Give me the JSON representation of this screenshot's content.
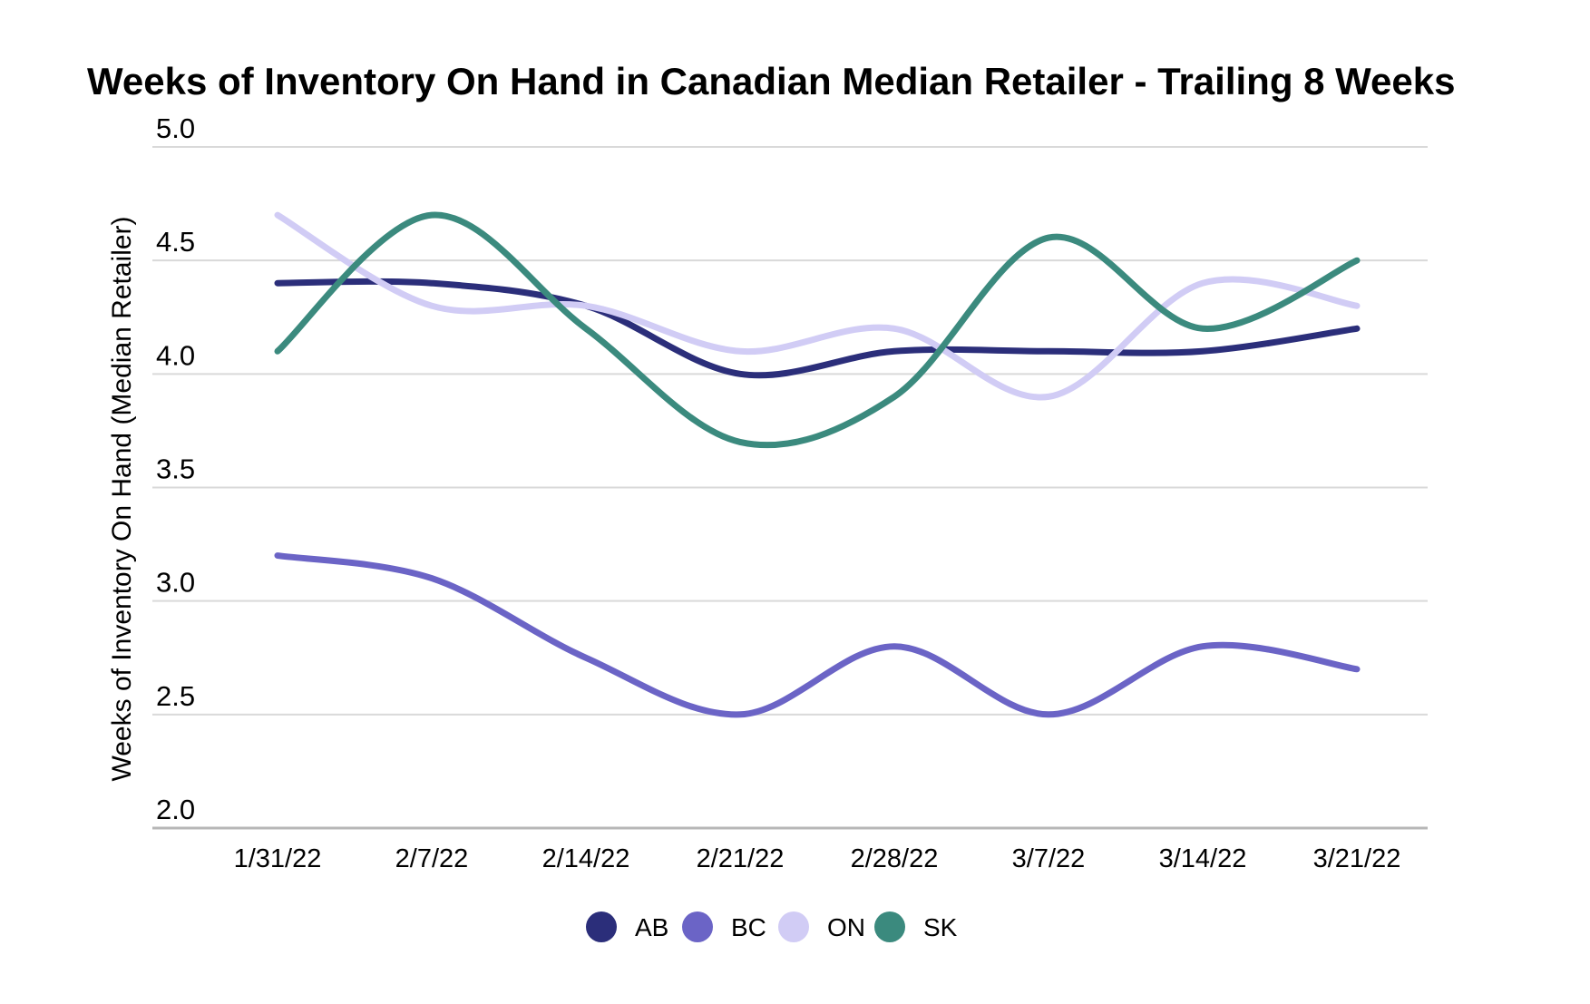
{
  "chart": {
    "title": "Weeks of Inventory On Hand in Canadian Median Retailer - Trailing 8 Weeks",
    "y_axis_title": "Weeks of Inventory On Hand (Median Retailer)"
  },
  "chart_data": {
    "type": "line",
    "smooth": true,
    "title": "Weeks of Inventory On Hand in Canadian Median Retailer - Trailing 8 Weeks",
    "xlabel": "",
    "ylabel": "Weeks of Inventory On Hand (Median Retailer)",
    "x": [
      "1/31/22",
      "2/7/22",
      "2/14/22",
      "2/21/22",
      "2/28/22",
      "3/7/22",
      "3/14/22",
      "3/21/22"
    ],
    "series": [
      {
        "name": "AB",
        "color": "#2b2e7a",
        "values": [
          4.4,
          4.4,
          4.3,
          4.0,
          4.1,
          4.1,
          4.1,
          4.2
        ]
      },
      {
        "name": "BC",
        "color": "#6b64c6",
        "values": [
          3.2,
          3.1,
          2.75,
          2.5,
          2.8,
          2.5,
          2.8,
          2.7
        ]
      },
      {
        "name": "ON",
        "color": "#d1ccf5",
        "values": [
          4.7,
          4.3,
          4.3,
          4.1,
          4.2,
          3.9,
          4.4,
          4.3
        ]
      },
      {
        "name": "SK",
        "color": "#3b8a7e",
        "values": [
          4.1,
          4.7,
          4.2,
          3.7,
          3.9,
          4.6,
          4.2,
          4.5
        ]
      }
    ],
    "ylim": [
      2.0,
      5.0
    ],
    "y_ticks": [
      5.0,
      4.5,
      4.0,
      3.5,
      3.0,
      2.5,
      2.0
    ],
    "y_tick_labels": [
      "5.0",
      "4.5",
      "4.0",
      "3.5",
      "3.0",
      "2.5",
      "2.0"
    ],
    "grid": true,
    "legend_position": "bottom",
    "colors": {
      "gridline": "#d9d9d9",
      "axis_line": "#b7b7b7",
      "text": "#000000",
      "background": "#ffffff"
    }
  }
}
